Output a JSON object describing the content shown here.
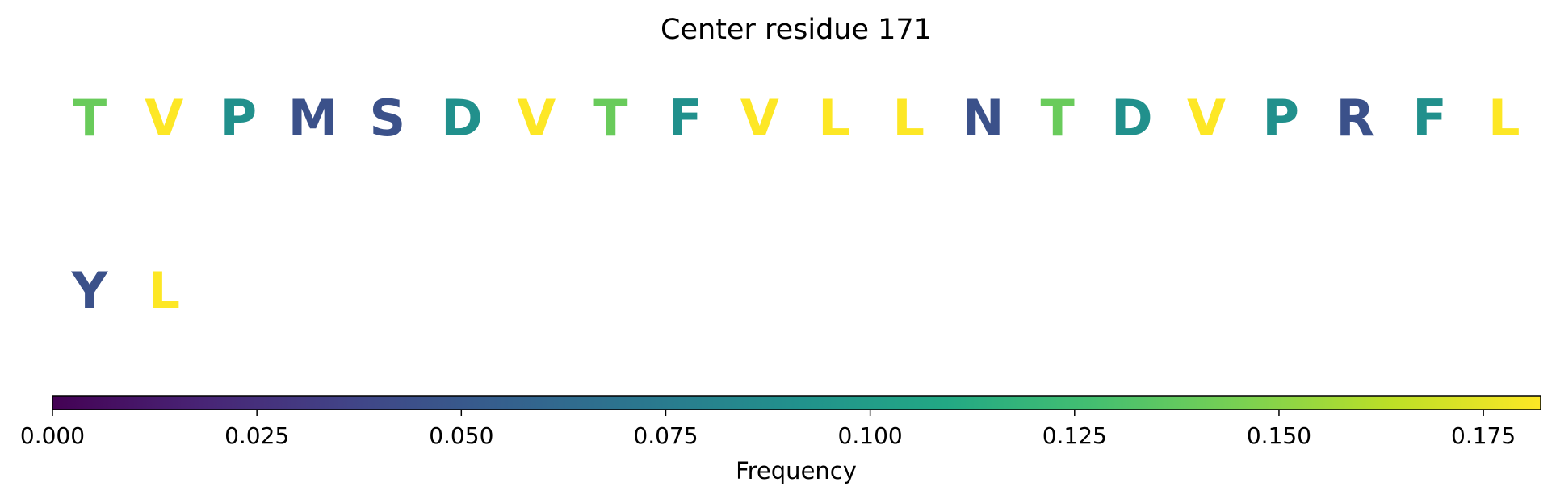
{
  "chart_data": {
    "type": "heatmap",
    "title": "Center residue 171",
    "residues": [
      {
        "letter": "T",
        "frequency": 0.14
      },
      {
        "letter": "V",
        "frequency": 0.182
      },
      {
        "letter": "P",
        "frequency": 0.09
      },
      {
        "letter": "M",
        "frequency": 0.045
      },
      {
        "letter": "S",
        "frequency": 0.045
      },
      {
        "letter": "D",
        "frequency": 0.09
      },
      {
        "letter": "V",
        "frequency": 0.182
      },
      {
        "letter": "T",
        "frequency": 0.14
      },
      {
        "letter": "F",
        "frequency": 0.09
      },
      {
        "letter": "V",
        "frequency": 0.182
      },
      {
        "letter": "L",
        "frequency": 0.182
      },
      {
        "letter": "L",
        "frequency": 0.182
      },
      {
        "letter": "N",
        "frequency": 0.045
      },
      {
        "letter": "T",
        "frequency": 0.14
      },
      {
        "letter": "D",
        "frequency": 0.09
      },
      {
        "letter": "V",
        "frequency": 0.182
      },
      {
        "letter": "P",
        "frequency": 0.09
      },
      {
        "letter": "R",
        "frequency": 0.045
      },
      {
        "letter": "F",
        "frequency": 0.09
      },
      {
        "letter": "L",
        "frequency": 0.182
      },
      {
        "letter": "Y",
        "frequency": 0.045
      },
      {
        "letter": "L",
        "frequency": 0.182
      }
    ],
    "colorbar": {
      "label": "Frequency",
      "colormap": "viridis",
      "range": [
        0,
        0.182
      ],
      "ticks": [
        0.0,
        0.025,
        0.05,
        0.075,
        0.1,
        0.125,
        0.15,
        0.175
      ],
      "tick_labels": [
        "0.000",
        "0.025",
        "0.050",
        "0.075",
        "0.100",
        "0.125",
        "0.150",
        "0.175"
      ],
      "orientation": "horizontal"
    }
  }
}
